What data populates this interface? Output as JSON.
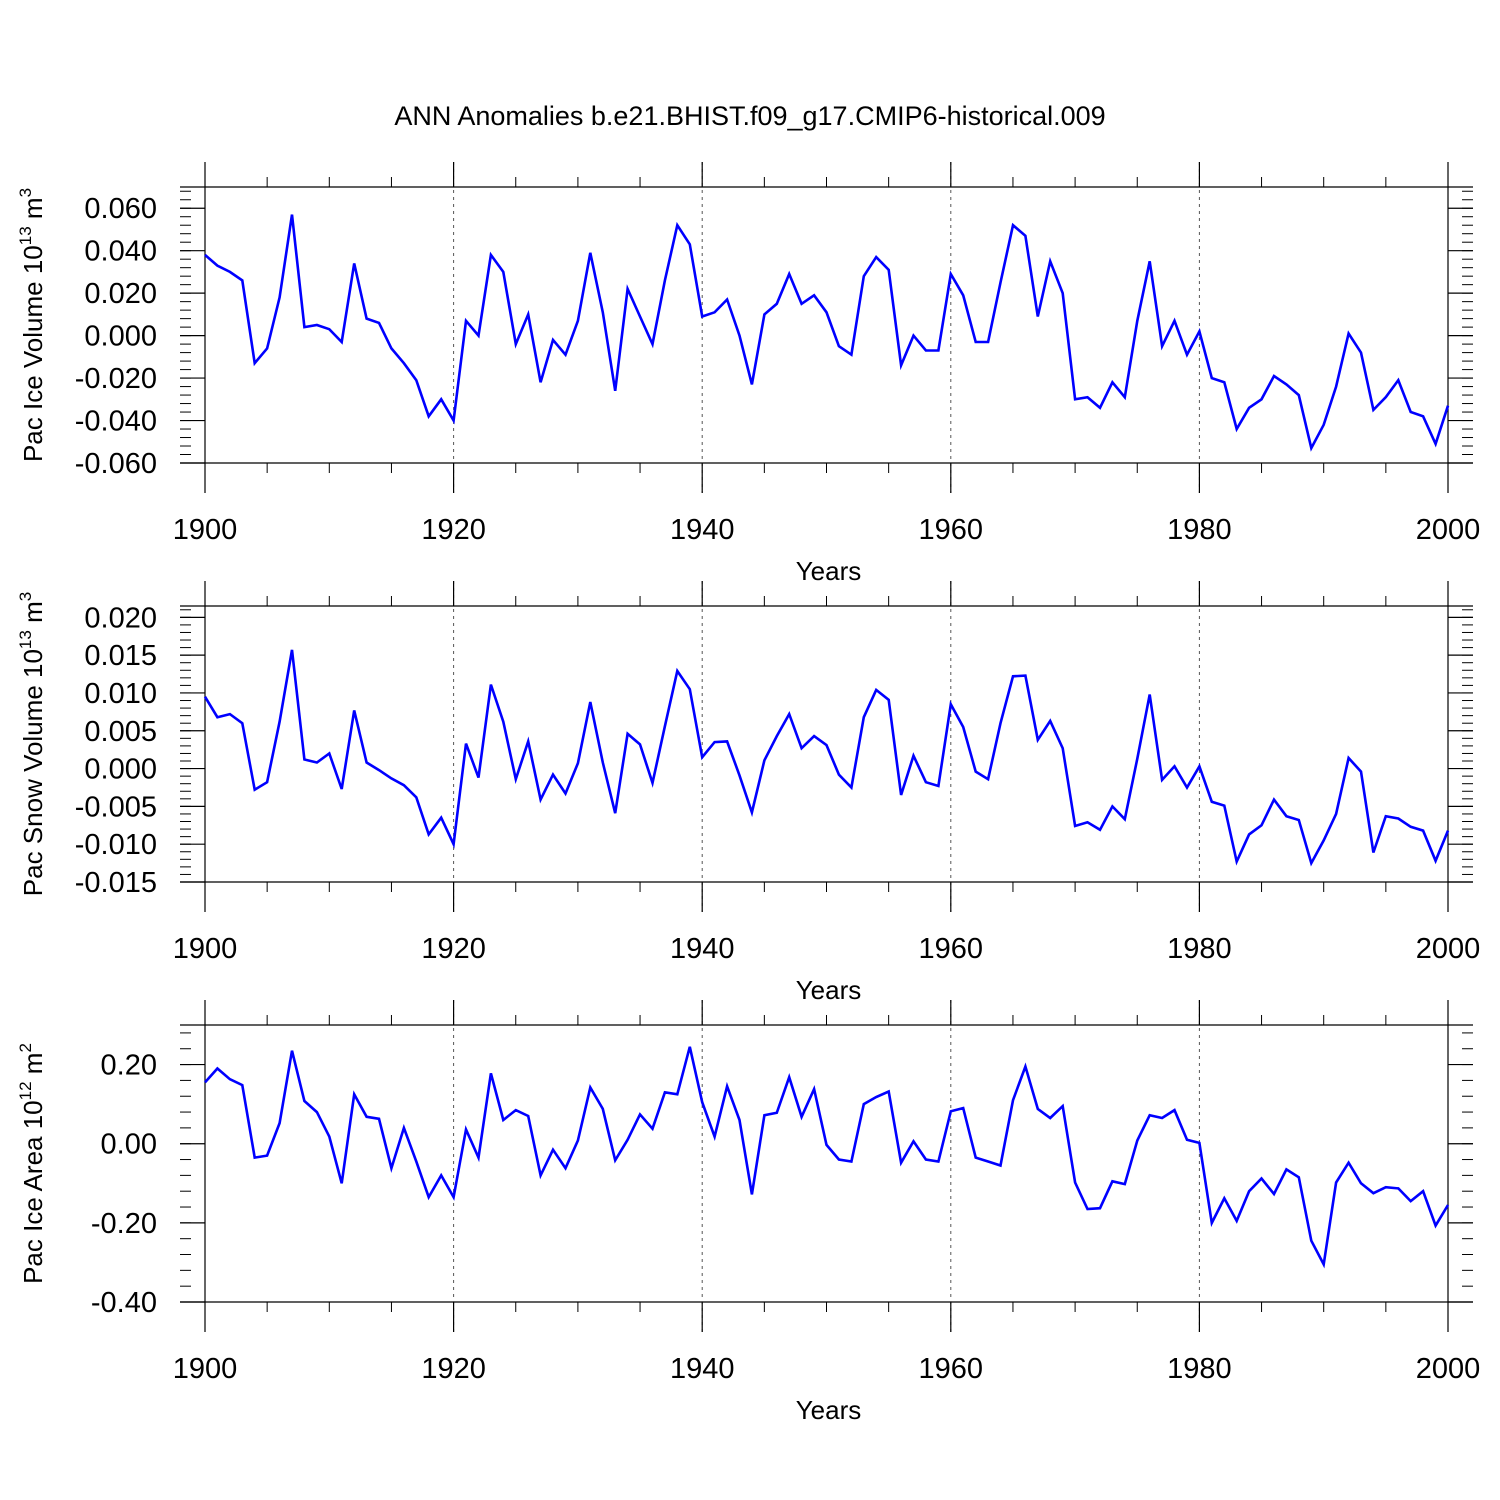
{
  "figure": {
    "title": "ANN Anomalies b.e21.BHIST.f09_g17.CMIP6-historical.009",
    "line_color": "#0000ff"
  },
  "chart_data": [
    {
      "type": "line",
      "title": "",
      "ylabel_parts": {
        "pre": "Pac Ice Volume 10",
        "exp": "13",
        "mid": " m",
        "exp2": "3"
      },
      "xlabel": "Years",
      "xlim": [
        1900,
        2000
      ],
      "ylim": [
        -0.06,
        0.07
      ],
      "xticks": [
        1900,
        1920,
        1940,
        1960,
        1980,
        2000
      ],
      "yticks": [
        -0.06,
        -0.04,
        -0.02,
        0.0,
        0.02,
        0.04,
        0.06
      ],
      "ytick_labels": [
        "-0.060",
        "-0.040",
        "-0.020",
        "0.000",
        "0.020",
        "0.040",
        "0.060"
      ],
      "grid_x_dashed": [
        1920,
        1940,
        1960,
        1980
      ],
      "x": [
        1900,
        1901,
        1902,
        1903,
        1904,
        1905,
        1906,
        1907,
        1908,
        1909,
        1910,
        1911,
        1912,
        1913,
        1914,
        1915,
        1916,
        1917,
        1918,
        1919,
        1920,
        1921,
        1922,
        1923,
        1924,
        1925,
        1926,
        1927,
        1928,
        1929,
        1930,
        1931,
        1932,
        1933,
        1934,
        1935,
        1936,
        1937,
        1938,
        1939,
        1940,
        1941,
        1942,
        1943,
        1944,
        1945,
        1946,
        1947,
        1948,
        1949,
        1950,
        1951,
        1952,
        1953,
        1954,
        1955,
        1956,
        1957,
        1958,
        1959,
        1960,
        1961,
        1962,
        1963,
        1964,
        1965,
        1966,
        1967,
        1968,
        1969,
        1970,
        1971,
        1972,
        1973,
        1974,
        1975,
        1976,
        1977,
        1978,
        1979,
        1980,
        1981,
        1982,
        1983,
        1984,
        1985,
        1986,
        1987,
        1988,
        1989,
        1990,
        1991,
        1992,
        1993,
        1994,
        1995,
        1996,
        1997,
        1998,
        1999,
        2000
      ],
      "series": [
        {
          "name": "Pac Ice Volume",
          "values": [
            0.038,
            0.033,
            0.03,
            0.026,
            -0.013,
            -0.006,
            0.018,
            0.057,
            0.004,
            0.005,
            0.003,
            -0.003,
            0.034,
            0.008,
            0.006,
            -0.006,
            -0.013,
            -0.021,
            -0.038,
            -0.03,
            -0.04,
            0.007,
            0.0,
            0.038,
            0.03,
            -0.004,
            0.01,
            -0.022,
            -0.002,
            -0.009,
            0.007,
            0.039,
            0.011,
            -0.026,
            0.022,
            0.009,
            -0.004,
            0.026,
            0.052,
            0.043,
            0.009,
            0.011,
            0.017,
            0.0,
            -0.023,
            0.01,
            0.015,
            0.029,
            0.015,
            0.019,
            0.011,
            -0.005,
            -0.009,
            0.028,
            0.037,
            0.031,
            -0.014,
            0.0,
            -0.007,
            -0.007,
            0.029,
            0.019,
            -0.003,
            -0.003,
            0.025,
            0.052,
            0.047,
            0.009,
            0.035,
            0.02,
            -0.03,
            -0.029,
            -0.034,
            -0.022,
            -0.029,
            0.007,
            0.035,
            -0.005,
            0.007,
            -0.009,
            0.002,
            -0.02,
            -0.022,
            -0.044,
            -0.034,
            -0.03,
            -0.019,
            -0.023,
            -0.028,
            -0.053,
            -0.042,
            -0.024,
            0.001,
            -0.008,
            -0.035,
            -0.029,
            -0.021,
            -0.036,
            -0.038,
            -0.051,
            -0.033
          ]
        }
      ]
    },
    {
      "type": "line",
      "title": "",
      "ylabel_parts": {
        "pre": "Pac Snow Volume 10",
        "exp": "13",
        "mid": " m",
        "exp2": "3"
      },
      "xlabel": "Years",
      "xlim": [
        1900,
        2000
      ],
      "ylim": [
        -0.015,
        0.0215
      ],
      "xticks": [
        1900,
        1920,
        1940,
        1960,
        1980,
        2000
      ],
      "yticks": [
        -0.015,
        -0.01,
        -0.005,
        0.0,
        0.005,
        0.01,
        0.015,
        0.02
      ],
      "ytick_labels": [
        "-0.015",
        "-0.010",
        "-0.005",
        "0.000",
        "0.005",
        "0.010",
        "0.015",
        "0.020"
      ],
      "grid_x_dashed": [
        1920,
        1940,
        1960,
        1980
      ],
      "x": [
        1900,
        1901,
        1902,
        1903,
        1904,
        1905,
        1906,
        1907,
        1908,
        1909,
        1910,
        1911,
        1912,
        1913,
        1914,
        1915,
        1916,
        1917,
        1918,
        1919,
        1920,
        1921,
        1922,
        1923,
        1924,
        1925,
        1926,
        1927,
        1928,
        1929,
        1930,
        1931,
        1932,
        1933,
        1934,
        1935,
        1936,
        1937,
        1938,
        1939,
        1940,
        1941,
        1942,
        1943,
        1944,
        1945,
        1946,
        1947,
        1948,
        1949,
        1950,
        1951,
        1952,
        1953,
        1954,
        1955,
        1956,
        1957,
        1958,
        1959,
        1960,
        1961,
        1962,
        1963,
        1964,
        1965,
        1966,
        1967,
        1968,
        1969,
        1970,
        1971,
        1972,
        1973,
        1974,
        1975,
        1976,
        1977,
        1978,
        1979,
        1980,
        1981,
        1982,
        1983,
        1984,
        1985,
        1986,
        1987,
        1988,
        1989,
        1990,
        1991,
        1992,
        1993,
        1994,
        1995,
        1996,
        1997,
        1998,
        1999,
        2000
      ],
      "series": [
        {
          "name": "Pac Snow Volume",
          "values": [
            0.0095,
            0.0068,
            0.0072,
            0.006,
            -0.0028,
            -0.0018,
            0.0062,
            0.0157,
            0.0012,
            0.0008,
            0.002,
            -0.0027,
            0.0077,
            0.0008,
            -0.0002,
            -0.0013,
            -0.0022,
            -0.0038,
            -0.0087,
            -0.0065,
            -0.01,
            0.0033,
            -0.0012,
            0.0111,
            0.0062,
            -0.0014,
            0.0036,
            -0.0041,
            -0.0008,
            -0.0033,
            0.0007,
            0.0088,
            0.0008,
            -0.0059,
            0.0046,
            0.0032,
            -0.0019,
            0.0056,
            0.0129,
            0.0105,
            0.0015,
            0.0035,
            0.0036,
            -0.0009,
            -0.0058,
            0.0011,
            0.0043,
            0.0072,
            0.0027,
            0.0043,
            0.0031,
            -0.0008,
            -0.0025,
            0.0068,
            0.0104,
            0.0091,
            -0.0035,
            0.0017,
            -0.0018,
            -0.0023,
            0.0085,
            0.0055,
            -0.0004,
            -0.0014,
            0.006,
            0.0122,
            0.0123,
            0.0038,
            0.0063,
            0.0027,
            -0.0076,
            -0.0071,
            -0.0081,
            -0.005,
            -0.0067,
            0.0013,
            0.0098,
            -0.0015,
            0.0003,
            -0.0025,
            0.0003,
            -0.0044,
            -0.0049,
            -0.0123,
            -0.0087,
            -0.0075,
            -0.0041,
            -0.0063,
            -0.0068,
            -0.0125,
            -0.0095,
            -0.006,
            0.0014,
            -0.0004,
            -0.0111,
            -0.0063,
            -0.0066,
            -0.0077,
            -0.0082,
            -0.0122,
            -0.0082
          ]
        }
      ]
    },
    {
      "type": "line",
      "title": "",
      "ylabel_parts": {
        "pre": "Pac Ice Area 10",
        "exp": "12",
        "mid": " m",
        "exp2": "2"
      },
      "xlabel": "Years",
      "xlim": [
        1900,
        2000
      ],
      "ylim": [
        -0.4,
        0.3
      ],
      "xticks": [
        1900,
        1920,
        1940,
        1960,
        1980,
        2000
      ],
      "yticks": [
        -0.4,
        -0.2,
        0.0,
        0.2
      ],
      "ytick_labels": [
        "-0.40",
        "-0.20",
        "0.00",
        "0.20"
      ],
      "grid_x_dashed": [
        1920,
        1940,
        1960,
        1980
      ],
      "x": [
        1900,
        1901,
        1902,
        1903,
        1904,
        1905,
        1906,
        1907,
        1908,
        1909,
        1910,
        1911,
        1912,
        1913,
        1914,
        1915,
        1916,
        1917,
        1918,
        1919,
        1920,
        1921,
        1922,
        1923,
        1924,
        1925,
        1926,
        1927,
        1928,
        1929,
        1930,
        1931,
        1932,
        1933,
        1934,
        1935,
        1936,
        1937,
        1938,
        1939,
        1940,
        1941,
        1942,
        1943,
        1944,
        1945,
        1946,
        1947,
        1948,
        1949,
        1950,
        1951,
        1952,
        1953,
        1954,
        1955,
        1956,
        1957,
        1958,
        1959,
        1960,
        1961,
        1962,
        1963,
        1964,
        1965,
        1966,
        1967,
        1968,
        1969,
        1970,
        1971,
        1972,
        1973,
        1974,
        1975,
        1976,
        1977,
        1978,
        1979,
        1980,
        1981,
        1982,
        1983,
        1984,
        1985,
        1986,
        1987,
        1988,
        1989,
        1990,
        1991,
        1992,
        1993,
        1994,
        1995,
        1996,
        1997,
        1998,
        1999,
        2000
      ],
      "series": [
        {
          "name": "Pac Ice Area",
          "values": [
            0.155,
            0.19,
            0.163,
            0.148,
            -0.035,
            -0.03,
            0.052,
            0.235,
            0.108,
            0.08,
            0.018,
            -0.1,
            0.125,
            0.068,
            0.063,
            -0.062,
            0.04,
            -0.045,
            -0.135,
            -0.08,
            -0.135,
            0.036,
            -0.035,
            0.178,
            0.06,
            0.085,
            0.07,
            -0.08,
            -0.015,
            -0.062,
            0.008,
            0.142,
            0.088,
            -0.042,
            0.01,
            0.074,
            0.038,
            0.13,
            0.125,
            0.245,
            0.105,
            0.018,
            0.145,
            0.06,
            -0.128,
            0.072,
            0.078,
            0.168,
            0.068,
            0.138,
            -0.003,
            -0.04,
            -0.045,
            0.1,
            0.118,
            0.132,
            -0.048,
            0.006,
            -0.04,
            -0.045,
            0.082,
            0.09,
            -0.035,
            -0.045,
            -0.055,
            0.11,
            0.195,
            0.088,
            0.065,
            0.095,
            -0.098,
            -0.165,
            -0.163,
            -0.095,
            -0.102,
            0.008,
            0.072,
            0.065,
            0.085,
            0.01,
            0.002,
            -0.2,
            -0.138,
            -0.195,
            -0.12,
            -0.088,
            -0.127,
            -0.065,
            -0.085,
            -0.245,
            -0.305,
            -0.098,
            -0.048,
            -0.1,
            -0.125,
            -0.11,
            -0.113,
            -0.145,
            -0.12,
            -0.207,
            -0.155
          ]
        }
      ]
    }
  ]
}
